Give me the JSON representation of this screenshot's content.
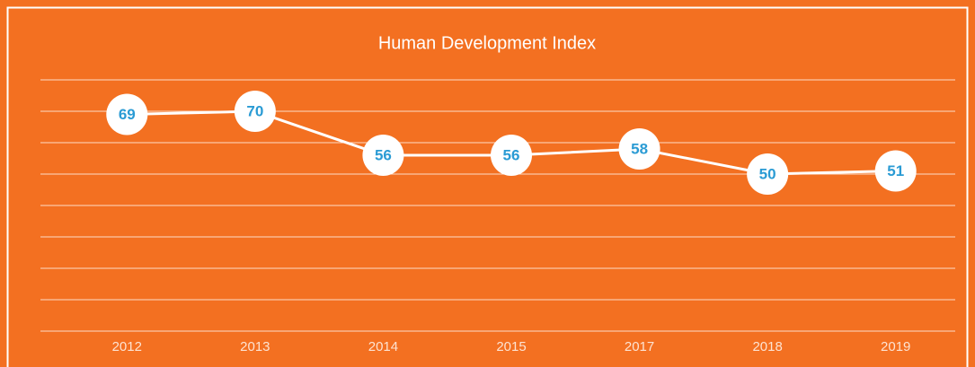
{
  "chart_data": {
    "type": "line",
    "title": "Human Development Index",
    "categories": [
      "2012",
      "2013",
      "2014",
      "2015",
      "2017",
      "2018",
      "2019"
    ],
    "values": [
      69,
      70,
      56,
      56,
      58,
      50,
      51
    ],
    "color": "#ffffff",
    "label_color": "#2a9bd4",
    "ylim": [
      0,
      80
    ],
    "yticks": [
      0,
      10,
      20,
      30,
      40,
      50,
      60,
      70,
      80
    ],
    "grid": true
  }
}
